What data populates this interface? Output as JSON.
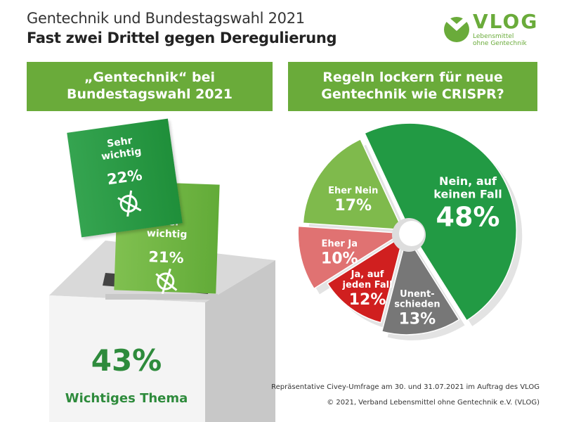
{
  "header": {
    "title": "Gentechnik und Bundestagswahl 2021",
    "subtitle": "Fast zwei Drittel gegen Deregulierung"
  },
  "logo": {
    "name": "VLOG",
    "tagline_1": "Lebensmittel",
    "tagline_2": "ohne Gentechnik"
  },
  "left_panel": {
    "heading_1": "„Gentechnik“ bei",
    "heading_2": "Bundestagswahl 2021",
    "cards": [
      {
        "label_1": "Sehr",
        "label_2": "wichtig",
        "value": "22%",
        "color": "#2e9a45"
      },
      {
        "label_1": "Eher",
        "label_2": "wichtig",
        "value": "21%",
        "color": "#72b844"
      }
    ],
    "total_value": "43%",
    "total_label": "Wichtiges Thema"
  },
  "chart_data": {
    "type": "pie",
    "title_1": "Regeln lockern für neue",
    "title_2": "Gentechnik wie CRISPR?",
    "slices": [
      {
        "label": [
          "Nein, auf",
          "keinen Fall"
        ],
        "value": 48,
        "color": "#229a44"
      },
      {
        "label": [
          "Unent-",
          "schieden"
        ],
        "value": 13,
        "color": "#777777"
      },
      {
        "label": [
          "Ja, auf",
          "jeden Fall"
        ],
        "value": 12,
        "color": "#d01f1f"
      },
      {
        "label": [
          "Eher Ja"
        ],
        "value": 10,
        "color": "#e07272"
      },
      {
        "label": [
          "Eher Nein"
        ],
        "value": 17,
        "color": "#7fba4c"
      }
    ]
  },
  "footer": {
    "source": "Repräsentative Civey-Umfrage am 30. und 31.07.2021 im Auftrag des VLOG",
    "copyright": "© 2021, Verband Lebensmittel ohne Gentechnik e.V. (VLOG)"
  }
}
